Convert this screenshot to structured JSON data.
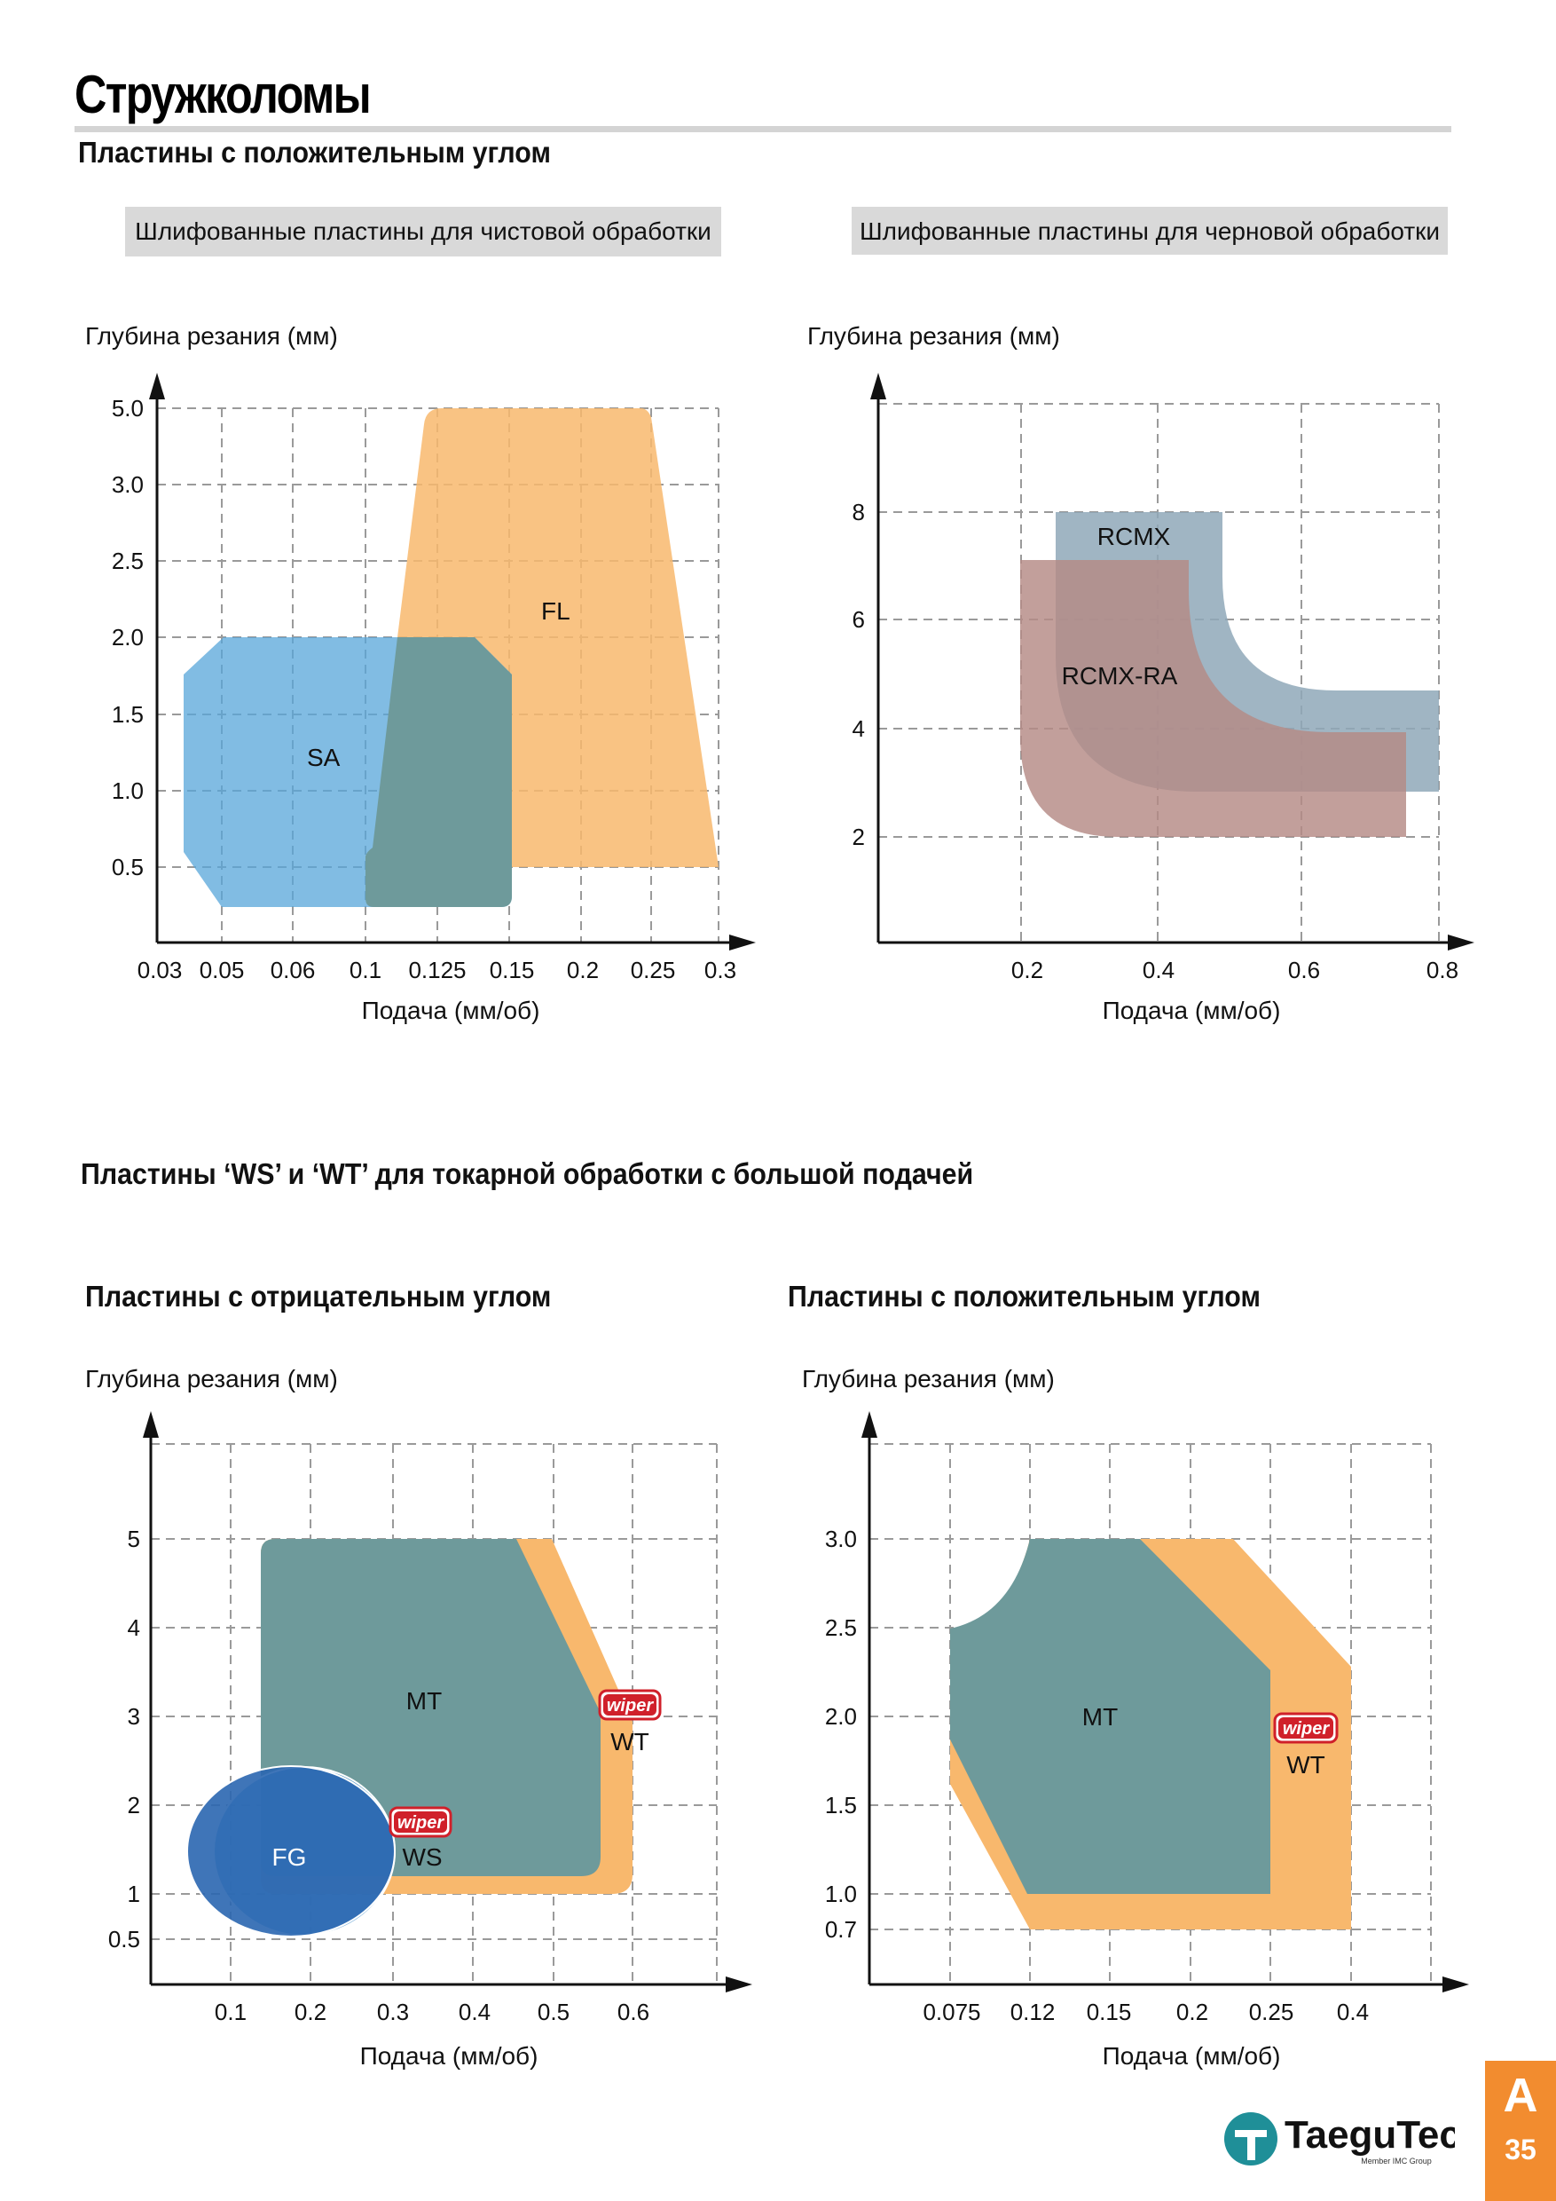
{
  "page": {
    "title": "Стружколомы",
    "subtitle": "Пластины с положительным углом",
    "box_left": "Шлифованные пластины для чистовой обработки",
    "box_right": "Шлифованные пластины для черновой обработки",
    "section_ws_wt": "Пластины ‘WS’ и ‘WT’ для токарной обработки с большой подачей",
    "subhead_negative": "Пластины с отрицательным углом",
    "subhead_positive": "Пластины с положительным углом",
    "tab_letter": "A",
    "page_number": "35",
    "logo_text": "TaeguTec",
    "logo_tagline": "Member IMC Group"
  },
  "colors": {
    "orange": "#f8b86d",
    "blue": "#57a5d9",
    "overlap_teal": "#6e9a9b",
    "steel": "#8fa8b8",
    "mauve": "#b58a85",
    "dark_blue": "#2a66b0",
    "grid": "#9a9a9a",
    "tab": "#f28c2f",
    "wiper_red": "#d0202a"
  },
  "chart_data": [
    {
      "type": "area",
      "ylabel": "Глубина резания (мм)",
      "xlabel": "Подача (мм/об)",
      "x_ticks": [
        "0.03",
        "0.05",
        "0.06",
        "0.1",
        "0.125",
        "0.15",
        "0.2",
        "0.25",
        "0.3"
      ],
      "y_ticks": [
        "0.5",
        "1.0",
        "1.5",
        "2.0",
        "2.5",
        "3.0",
        "5.0"
      ],
      "grid": true,
      "regions": [
        {
          "name": "SA",
          "x_range": [
            "0.03",
            "0.15"
          ],
          "y_range": [
            "0.5",
            "2.0"
          ]
        },
        {
          "name": "FL",
          "x_range": [
            "0.1",
            "0.3"
          ],
          "y_range": [
            "0.5",
            "5.0"
          ]
        }
      ]
    },
    {
      "type": "area",
      "ylabel": "Глубина резания (мм)",
      "xlabel": "Подача (мм/об)",
      "x_ticks": [
        "0.2",
        "0.4",
        "0.6",
        "0.8"
      ],
      "y_ticks": [
        "2",
        "4",
        "6",
        "8"
      ],
      "grid": true,
      "regions": [
        {
          "name": "RCMX",
          "x_range": [
            0.25,
            0.8
          ],
          "y_range": [
            2.9,
            8.0
          ]
        },
        {
          "name": "RCMX-RA",
          "x_range": [
            0.2,
            0.75
          ],
          "y_range": [
            2.0,
            7.1
          ]
        }
      ]
    },
    {
      "type": "area",
      "ylabel": "Глубина резания (мм)",
      "xlabel": "Подача (мм/об)",
      "x_ticks": [
        "0.1",
        "0.2",
        "0.3",
        "0.4",
        "0.5",
        "0.6"
      ],
      "y_ticks": [
        "0.5",
        "1",
        "2",
        "3",
        "4",
        "5"
      ],
      "grid": true,
      "regions": [
        {
          "name": "FG",
          "x_range": [
            0.05,
            0.3
          ],
          "y_range": [
            0.5,
            2.5
          ]
        },
        {
          "name": "WS",
          "x_range": [
            0.15,
            0.3
          ],
          "y_range": [
            0.6,
            2.5
          ],
          "badge": "wiper"
        },
        {
          "name": "MT",
          "x_range": [
            0.15,
            0.55
          ],
          "y_range": [
            1.0,
            5.0
          ]
        },
        {
          "name": "WT",
          "x_range": [
            0.15,
            0.6
          ],
          "y_range": [
            1.0,
            5.0
          ],
          "badge": "wiper"
        }
      ]
    },
    {
      "type": "area",
      "ylabel": "Глубина резания (мм)",
      "xlabel": "Подача (мм/об)",
      "x_ticks": [
        "0.075",
        "0.12",
        "0.15",
        "0.2",
        "0.25",
        "0.4"
      ],
      "y_ticks": [
        "0.7",
        "1.0",
        "1.5",
        "2.0",
        "2.5",
        "3.0"
      ],
      "grid": true,
      "regions": [
        {
          "name": "MT",
          "x_range": [
            "0.075",
            "0.25"
          ],
          "y_range": [
            "1.0",
            "3.0"
          ]
        },
        {
          "name": "WT",
          "x_range": [
            "0.075",
            "0.4"
          ],
          "y_range": [
            "0.7",
            "3.0"
          ],
          "badge": "wiper"
        }
      ]
    }
  ]
}
